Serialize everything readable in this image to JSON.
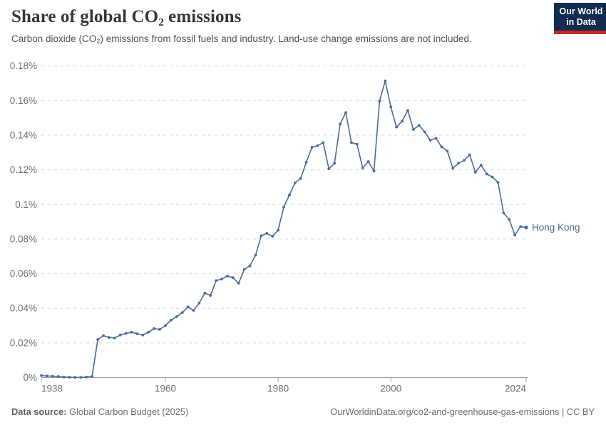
{
  "header": {
    "title": "Share of global CO₂ emissions",
    "subtitle": "Carbon dioxide (CO₂) emissions from fossil fuels and industry. Land-use change emissions are not included.",
    "logo": {
      "line1": "Our World",
      "line2": "in Data"
    }
  },
  "footer": {
    "source_label": "Data source:",
    "source_value": " Global Carbon Budget (2025)",
    "attribution": "OurWorldinData.org/co2-and-greenhouse-gas-emissions | CC BY"
  },
  "colors": {
    "accent": "#4C6A9C",
    "logo_bg": "#122B4E",
    "logo_red": "#C62A23",
    "grid": "#d9d9d9",
    "axis": "#9e9e9e",
    "tick_text": "#6e6e6e"
  },
  "chart_data": {
    "type": "line",
    "title": "Share of global CO₂ emissions",
    "series_label": "Hong Kong",
    "unit": "%",
    "grid": true,
    "legend_position": "end-of-line",
    "ylim": [
      0,
      0.18
    ],
    "ytick_values": [
      0,
      0.02,
      0.04,
      0.06,
      0.08,
      0.1,
      0.12,
      0.14,
      0.16,
      0.18
    ],
    "ytick_labels": [
      "0%",
      "0.02%",
      "0.04%",
      "0.06%",
      "0.08%",
      "0.1%",
      "0.12%",
      "0.14%",
      "0.16%",
      "0.18%"
    ],
    "xtick_values": [
      1938,
      1960,
      1980,
      2000,
      2024
    ],
    "x_start": 1938,
    "x_end": 2024,
    "years": [
      1938,
      1939,
      1940,
      1941,
      1942,
      1943,
      1944,
      1945,
      1946,
      1947,
      1948,
      1949,
      1950,
      1951,
      1952,
      1953,
      1954,
      1955,
      1956,
      1957,
      1958,
      1959,
      1960,
      1961,
      1962,
      1963,
      1964,
      1965,
      1966,
      1967,
      1968,
      1969,
      1970,
      1971,
      1972,
      1973,
      1974,
      1975,
      1976,
      1977,
      1978,
      1979,
      1980,
      1981,
      1982,
      1983,
      1984,
      1985,
      1986,
      1987,
      1988,
      1989,
      1990,
      1991,
      1992,
      1993,
      1994,
      1995,
      1996,
      1997,
      1998,
      1999,
      2000,
      2001,
      2002,
      2003,
      2004,
      2005,
      2006,
      2007,
      2008,
      2009,
      2010,
      2011,
      2012,
      2013,
      2014,
      2015,
      2016,
      2017,
      2018,
      2019,
      2020,
      2021,
      2022,
      2023,
      2024
    ],
    "values": [
      0.0011,
      0.0009,
      0.0008,
      0.0006,
      0.0003,
      0.0002,
      0.0001,
      0.0001,
      0.0003,
      0.0006,
      0.022,
      0.0242,
      0.0232,
      0.0228,
      0.0246,
      0.0255,
      0.0262,
      0.0253,
      0.0246,
      0.0262,
      0.0283,
      0.0278,
      0.03,
      0.0332,
      0.0352,
      0.0375,
      0.0408,
      0.0388,
      0.043,
      0.0488,
      0.0474,
      0.056,
      0.0569,
      0.0586,
      0.0577,
      0.0545,
      0.0625,
      0.0645,
      0.0707,
      0.0819,
      0.0833,
      0.0816,
      0.0851,
      0.0985,
      0.1054,
      0.1125,
      0.115,
      0.1244,
      0.133,
      0.1339,
      0.1357,
      0.1206,
      0.1238,
      0.1464,
      0.1531,
      0.1357,
      0.1348,
      0.1211,
      0.1248,
      0.1193,
      0.1597,
      0.1714,
      0.1563,
      0.1447,
      0.1481,
      0.1543,
      0.1433,
      0.1457,
      0.1419,
      0.1371,
      0.1382,
      0.1333,
      0.1309,
      0.1209,
      0.1238,
      0.1255,
      0.1286,
      0.1186,
      0.1227,
      0.1176,
      0.1159,
      0.1128,
      0.095,
      0.0913,
      0.0823,
      0.0872,
      0.0867
    ]
  }
}
